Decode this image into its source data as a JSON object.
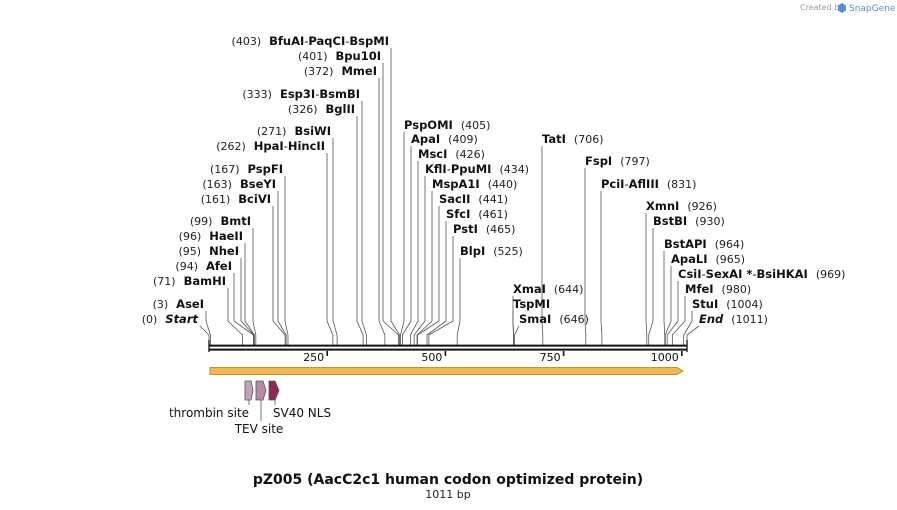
{
  "header": {
    "credit_prefix": "Created by",
    "credit_brand": "SnapGene"
  },
  "map": {
    "title": "pZ005 (AacC2c1 human codon optimized protein)",
    "length_label": "1011 bp",
    "length": 1011,
    "ticks": [
      {
        "pos": 250,
        "label": "250"
      },
      {
        "pos": 500,
        "label": "500"
      },
      {
        "pos": 750,
        "label": "750"
      },
      {
        "pos": 1000,
        "label": "1000"
      }
    ]
  },
  "sites": [
    {
      "id": "bfuai",
      "names": [
        "BfuAI",
        "PaqCI",
        "BspMI"
      ],
      "pos": "(403)",
      "cut": 403,
      "side": "left"
    },
    {
      "id": "bpu10i",
      "names": [
        "Bpu10I"
      ],
      "pos": "(401)",
      "cut": 401,
      "side": "left"
    },
    {
      "id": "mmei",
      "names": [
        "MmeI"
      ],
      "pos": "(372)",
      "cut": 372,
      "side": "left"
    },
    {
      "id": "esp3i",
      "names": [
        "Esp3I",
        "BsmBI"
      ],
      "pos": "(333)",
      "cut": 333,
      "side": "left"
    },
    {
      "id": "bglii",
      "names": [
        "BglII"
      ],
      "pos": "(326)",
      "cut": 326,
      "side": "left"
    },
    {
      "id": "bsiwi",
      "names": [
        "BsiWI"
      ],
      "pos": "(271)",
      "cut": 271,
      "side": "left"
    },
    {
      "id": "hpai",
      "names": [
        "HpaI",
        "HincII"
      ],
      "pos": "(262)",
      "cut": 262,
      "side": "left"
    },
    {
      "id": "pspfi",
      "names": [
        "PspFI"
      ],
      "pos": "(167)",
      "cut": 167,
      "side": "left"
    },
    {
      "id": "bseyi",
      "names": [
        "BseYI"
      ],
      "pos": "(163)",
      "cut": 163,
      "side": "left"
    },
    {
      "id": "bcivi",
      "names": [
        "BciVI"
      ],
      "pos": "(161)",
      "cut": 161,
      "side": "left"
    },
    {
      "id": "bmti",
      "names": [
        "BmtI"
      ],
      "pos": "(99)",
      "cut": 99,
      "side": "left"
    },
    {
      "id": "haeii",
      "names": [
        "HaeII"
      ],
      "pos": "(96)",
      "cut": 96,
      "side": "left"
    },
    {
      "id": "nhei",
      "names": [
        "NheI"
      ],
      "pos": "(95)",
      "cut": 95,
      "side": "left"
    },
    {
      "id": "afei",
      "names": [
        "AfeI"
      ],
      "pos": "(94)",
      "cut": 94,
      "side": "left"
    },
    {
      "id": "bamhi",
      "names": [
        "BamHI"
      ],
      "pos": "(71)",
      "cut": 71,
      "side": "left"
    },
    {
      "id": "asei",
      "names": [
        "AseI"
      ],
      "pos": "(3)",
      "cut": 3,
      "side": "left"
    },
    {
      "id": "start",
      "names": [
        "Start"
      ],
      "pos": "(0)",
      "cut": 0,
      "side": "left",
      "italic": true
    },
    {
      "id": "pspomi",
      "names": [
        "PspOMI"
      ],
      "pos": "(405)",
      "cut": 405,
      "side": "right"
    },
    {
      "id": "apai",
      "names": [
        "ApaI"
      ],
      "pos": "(409)",
      "cut": 409,
      "side": "right"
    },
    {
      "id": "msci",
      "names": [
        "MscI"
      ],
      "pos": "(426)",
      "cut": 426,
      "side": "right"
    },
    {
      "id": "kfli",
      "names": [
        "KflI",
        "PpuMI"
      ],
      "pos": "(434)",
      "cut": 434,
      "side": "right"
    },
    {
      "id": "mspa1i",
      "names": [
        "MspA1I"
      ],
      "pos": "(440)",
      "cut": 440,
      "side": "right"
    },
    {
      "id": "sacii",
      "names": [
        "SacII"
      ],
      "pos": "(441)",
      "cut": 441,
      "side": "right"
    },
    {
      "id": "sfci",
      "names": [
        "SfcI"
      ],
      "pos": "(461)",
      "cut": 461,
      "side": "right"
    },
    {
      "id": "psti",
      "names": [
        "PstI"
      ],
      "pos": "(465)",
      "cut": 465,
      "side": "right"
    },
    {
      "id": "blpi",
      "names": [
        "BlpI"
      ],
      "pos": "(525)",
      "cut": 525,
      "side": "right"
    },
    {
      "id": "xmai",
      "names": [
        "XmaI"
      ],
      "pos": "(644)",
      "cut": 644,
      "side": "right"
    },
    {
      "id": "tspmi",
      "names": [
        "TspMI"
      ],
      "pos": "",
      "cut": 644,
      "side": "right"
    },
    {
      "id": "smai",
      "names": [
        "SmaI"
      ],
      "pos": "(646)",
      "cut": 646,
      "side": "right"
    },
    {
      "id": "tati",
      "names": [
        "TatI"
      ],
      "pos": "(706)",
      "cut": 706,
      "side": "right"
    },
    {
      "id": "fspi",
      "names": [
        "FspI"
      ],
      "pos": "(797)",
      "cut": 797,
      "side": "right"
    },
    {
      "id": "pcii",
      "names": [
        "PciI",
        "AflIII"
      ],
      "pos": "(831)",
      "cut": 831,
      "side": "right"
    },
    {
      "id": "xmni",
      "names": [
        "XmnI"
      ],
      "pos": "(926)",
      "cut": 926,
      "side": "right"
    },
    {
      "id": "bstbi",
      "names": [
        "BstBI"
      ],
      "pos": "(930)",
      "cut": 930,
      "side": "right"
    },
    {
      "id": "bstapi",
      "names": [
        "BstAPI"
      ],
      "pos": "(964)",
      "cut": 964,
      "side": "right"
    },
    {
      "id": "apali",
      "names": [
        "ApaLI"
      ],
      "pos": "(965)",
      "cut": 965,
      "side": "right"
    },
    {
      "id": "csii",
      "names": [
        "CsiI",
        "SexAI *",
        "BsiHKAI"
      ],
      "pos": "(969)",
      "cut": 969,
      "side": "right"
    },
    {
      "id": "mfei",
      "names": [
        "MfeI"
      ],
      "pos": "(980)",
      "cut": 980,
      "side": "right"
    },
    {
      "id": "stui",
      "names": [
        "StuI"
      ],
      "pos": "(1004)",
      "cut": 1004,
      "side": "right"
    },
    {
      "id": "end",
      "names": [
        "End"
      ],
      "pos": "(1011)",
      "cut": 1011,
      "side": "right",
      "italic": true
    }
  ],
  "features": [
    {
      "id": "orf",
      "label": "",
      "start": 0,
      "end": 1011,
      "color": "#f0b755"
    },
    {
      "id": "thrombin-site",
      "label": "thrombin site",
      "start": 78,
      "end": 96,
      "color": "#c9a0b9"
    },
    {
      "id": "tev-site",
      "label": "TEV site",
      "start": 99,
      "end": 120,
      "color": "#b889a8"
    },
    {
      "id": "sv40-nls",
      "label": "SV40 NLS",
      "start": 124,
      "end": 145,
      "color": "#8a2a55"
    }
  ],
  "colors": {
    "backbone": "#111111",
    "leader": "#555555",
    "orf_outline": "#c89028"
  }
}
